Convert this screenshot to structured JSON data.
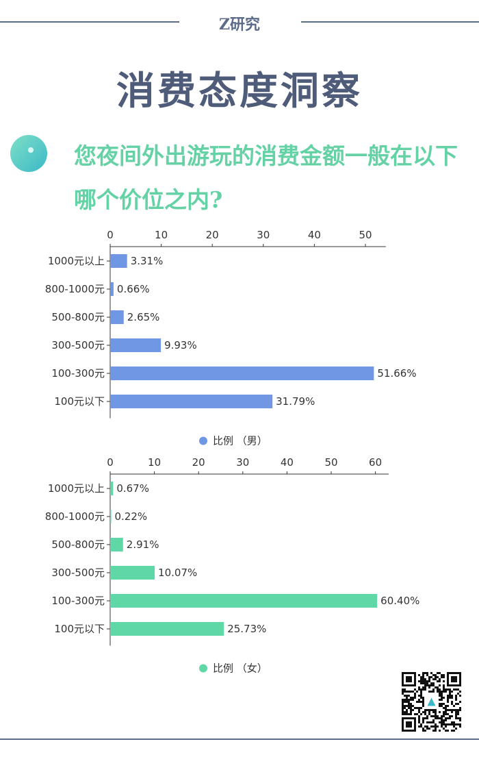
{
  "header": {
    "brand": "Z研究",
    "title": "消费态度洞察",
    "question": "您夜间外出游玩的消费金额一般在以下哪个价位之内?"
  },
  "colors": {
    "male": "#6f97e4",
    "female": "#5fd7a6",
    "accent": "#5c6b8a",
    "question": "#64d2a4"
  },
  "chart_data": [
    {
      "type": "bar",
      "orientation": "horizontal",
      "categories": [
        "1000元以上",
        "800-1000元",
        "500-800元",
        "300-500元",
        "100-300元",
        "100元以下"
      ],
      "series": [
        {
          "name": "比例 （男）",
          "values": [
            3.31,
            0.66,
            2.65,
            9.93,
            51.66,
            31.79
          ],
          "labels": [
            "3.31%",
            "0.66%",
            "2.65%",
            "9.93%",
            "51.66%",
            "31.79%"
          ]
        }
      ],
      "xticks": [
        0,
        10,
        20,
        30,
        40,
        50
      ],
      "xlim": [
        0,
        54
      ],
      "grid": false,
      "legend": "bottom"
    },
    {
      "type": "bar",
      "orientation": "horizontal",
      "categories": [
        "1000元以上",
        "800-1000元",
        "500-800元",
        "300-500元",
        "100-300元",
        "100元以下"
      ],
      "series": [
        {
          "name": "比例 （女）",
          "values": [
            0.67,
            0.22,
            2.91,
            10.07,
            60.4,
            25.73
          ],
          "labels": [
            "0.67%",
            "0.22%",
            "2.91%",
            "10.07%",
            "60.40%",
            "25.73%"
          ]
        }
      ],
      "xticks": [
        0,
        10,
        20,
        30,
        40,
        50,
        60
      ],
      "xlim": [
        0,
        63
      ],
      "grid": false,
      "legend": "bottom"
    }
  ]
}
